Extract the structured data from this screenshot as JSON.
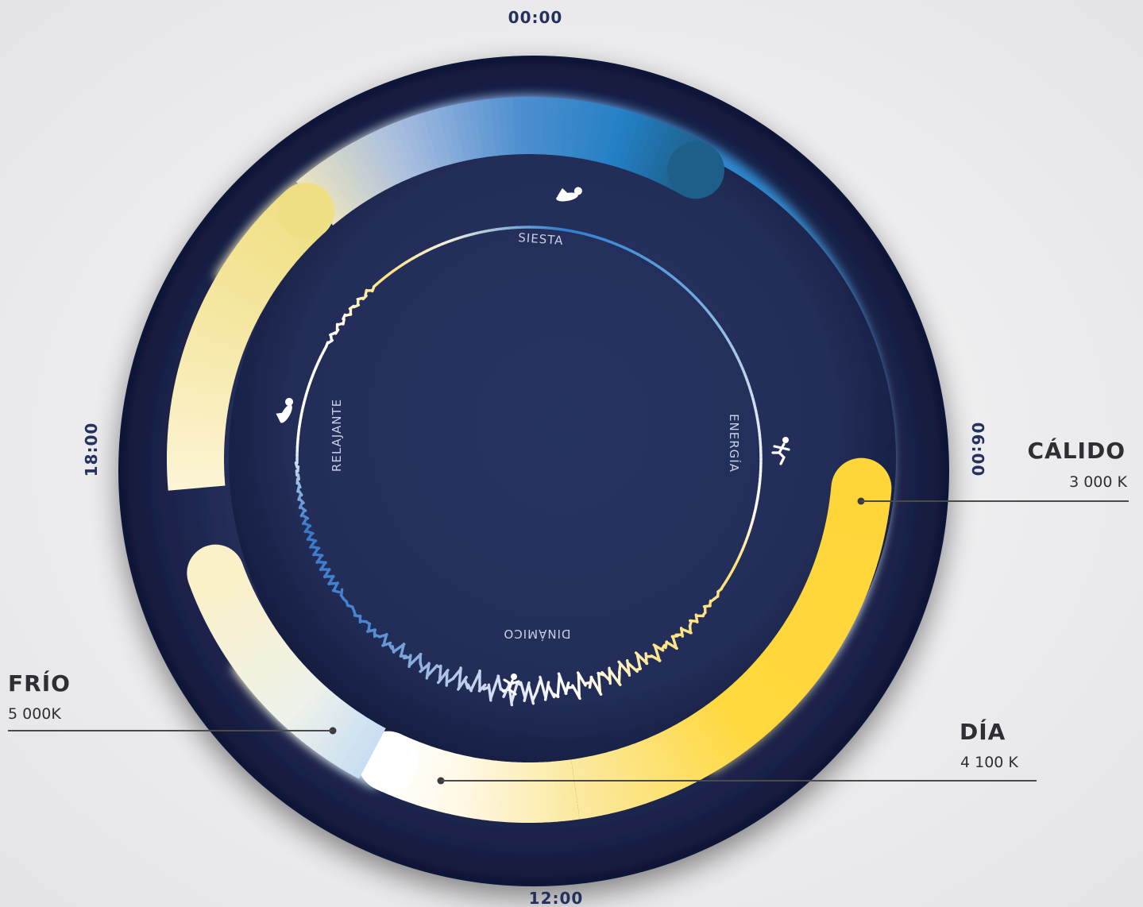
{
  "clock": {
    "top": "00:00",
    "right": "06:00",
    "bottom": "12:00",
    "left": "18:00"
  },
  "modes": {
    "top": "SIESTA",
    "right": "ENERGÍA",
    "bottom": "DINÁMICO",
    "left": "RELAJANTE"
  },
  "callouts": {
    "warm": {
      "title": "CÁLIDO",
      "value": "3 000 K"
    },
    "cold": {
      "title": "FRÍO",
      "value": "5 000K"
    },
    "day": {
      "title": "DÍA",
      "value": "4 100 K"
    }
  },
  "colors": {
    "navy": "#24305e",
    "warm": "#ffd93a",
    "day": "#ffffff",
    "cold": "#c4dcf3",
    "night_blue": "#2a86c9"
  },
  "icons": {
    "top": "sleeping-person-icon",
    "right": "running-person-icon",
    "bottom": "exercising-person-icon",
    "left": "reclining-person-icon"
  }
}
